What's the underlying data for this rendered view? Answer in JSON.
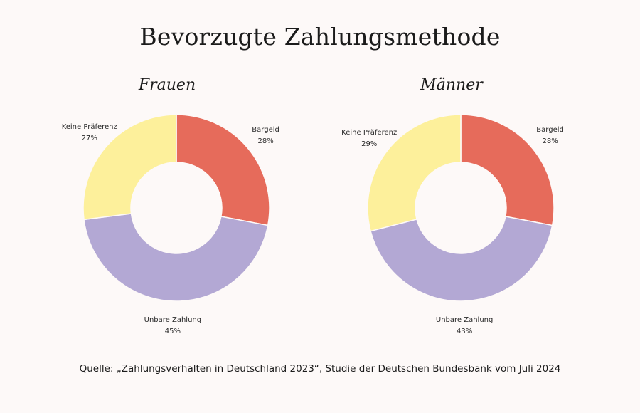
{
  "chart_title": "Bevorzugte Zahlungsmethode",
  "source": "Quelle: „Zahlungsverhalten in Deutschland 2023“, Studie der Deutschen Bundesbank vom Juli 2024",
  "colors": {
    "Bargeld": "#e66b5b",
    "Unbare Zahlung": "#b3a8d4",
    "Keine Präferenz": "#fdf09b",
    "background": "#fdf9f8"
  },
  "chart_data": [
    {
      "type": "pie",
      "style": "donut",
      "title": "Frauen",
      "categories": [
        "Bargeld",
        "Unbare Zahlung",
        "Keine Präferenz"
      ],
      "values": [
        28,
        45,
        27
      ],
      "labels": [
        "28%",
        "45%",
        "27%"
      ]
    },
    {
      "type": "pie",
      "style": "donut",
      "title": "Männer",
      "categories": [
        "Bargeld",
        "Unbare Zahlung",
        "Keine Präferenz"
      ],
      "values": [
        28,
        43,
        29
      ],
      "labels": [
        "28%",
        "43%",
        "29%"
      ]
    }
  ]
}
